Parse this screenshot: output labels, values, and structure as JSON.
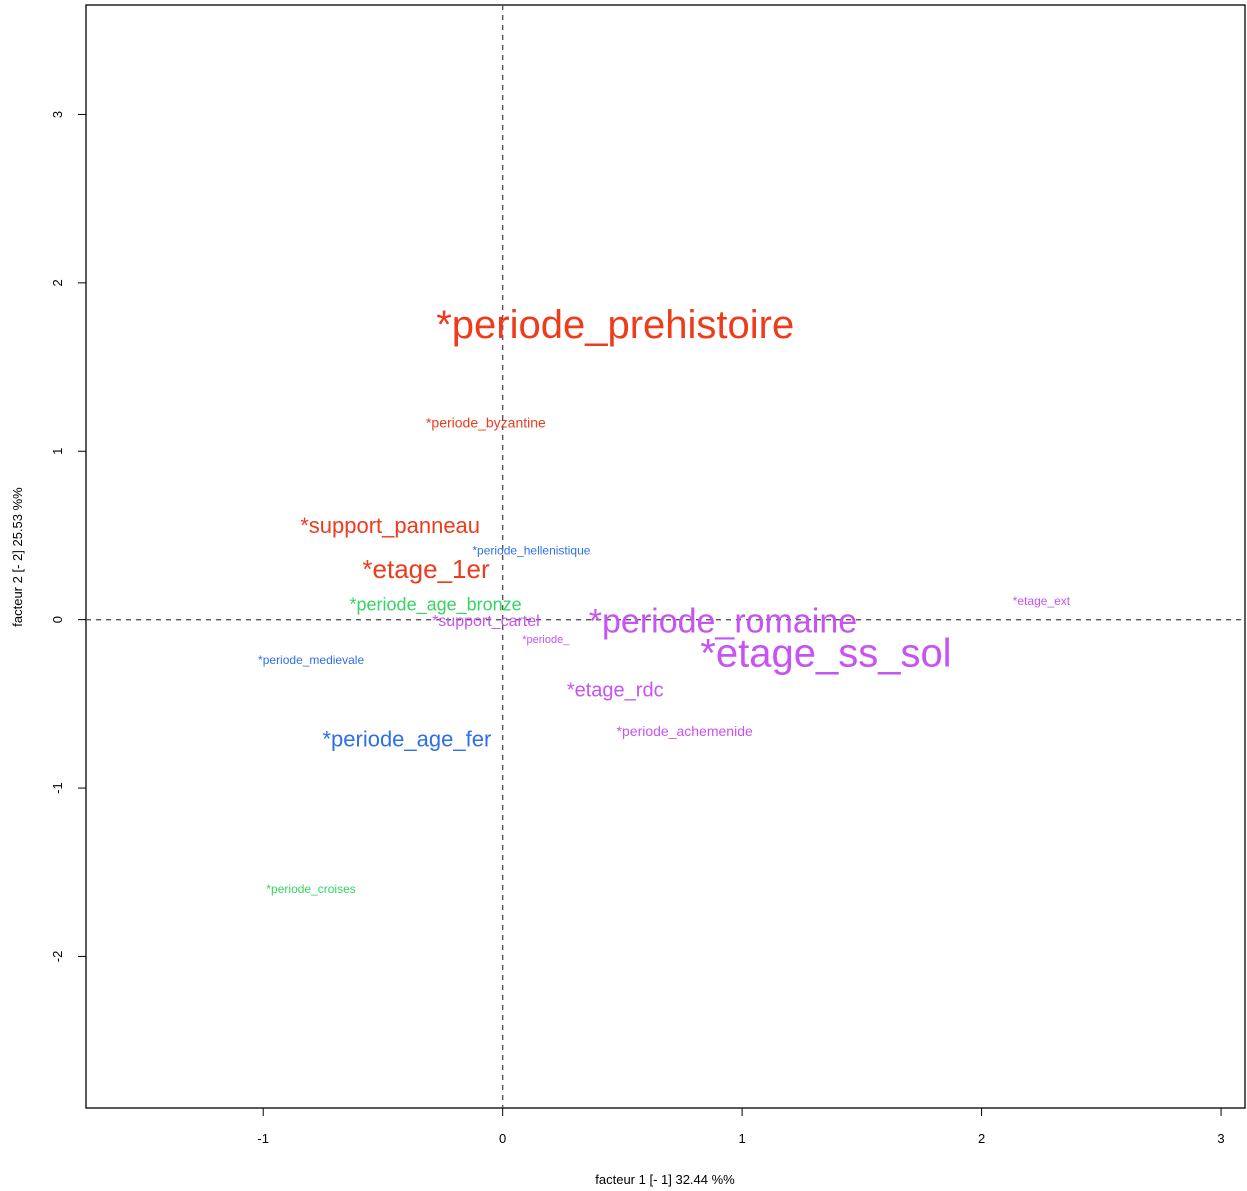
{
  "chart_data": {
    "type": "scatter",
    "title": "",
    "xlabel": "facteur  1 [- 1]  32.44 %%",
    "ylabel": "facteur  2 [- 2]  25.53 %%",
    "xlim": [
      -1.74,
      3.1
    ],
    "ylim": [
      -2.9,
      3.65
    ],
    "x_ticks": [
      -1,
      0,
      1,
      2,
      3
    ],
    "y_ticks": [
      -2,
      -1,
      0,
      1,
      2,
      3
    ],
    "grid": false,
    "reference_lines": {
      "x": 0,
      "y": 0
    },
    "colors": {
      "red": "#ee3b1c",
      "blue": "#2f6fe8",
      "green": "#35d562",
      "magenta": "#c653f2"
    },
    "points": [
      {
        "label": "*periode_prehistoire",
        "x": 0.47,
        "y": 1.75,
        "color": "#ee3b1c",
        "size": 40
      },
      {
        "label": "*periode_byzantine",
        "x": -0.07,
        "y": 1.17,
        "color": "#ee3b1c",
        "size": 14
      },
      {
        "label": "*support_panneau",
        "x": -0.47,
        "y": 0.56,
        "color": "#ee3b1c",
        "size": 22
      },
      {
        "label": "*etage_1er",
        "x": -0.32,
        "y": 0.3,
        "color": "#ee3b1c",
        "size": 26
      },
      {
        "label": "*periode_hellenistique",
        "x": 0.12,
        "y": 0.41,
        "color": "#2f6fe8",
        "size": 12
      },
      {
        "label": "*periode_age_bronze",
        "x": -0.28,
        "y": 0.09,
        "color": "#35d562",
        "size": 18
      },
      {
        "label": "*support_cartel",
        "x": -0.07,
        "y": -0.01,
        "color": "#c653f2",
        "size": 16
      },
      {
        "label": "*periode_",
        "x": 0.18,
        "y": -0.12,
        "color": "#c653f2",
        "size": 11
      },
      {
        "label": "*periode_romaine",
        "x": 0.92,
        "y": -0.01,
        "color": "#c653f2",
        "size": 34
      },
      {
        "label": "*etage_ss_sol",
        "x": 1.35,
        "y": -0.2,
        "color": "#c653f2",
        "size": 40
      },
      {
        "label": "*etage_ext",
        "x": 2.25,
        "y": 0.11,
        "color": "#c653f2",
        "size": 12
      },
      {
        "label": "*periode_medievale",
        "x": -0.8,
        "y": -0.24,
        "color": "#2f6fe8",
        "size": 12
      },
      {
        "label": "*etage_rdc",
        "x": 0.47,
        "y": -0.42,
        "color": "#c653f2",
        "size": 20
      },
      {
        "label": "*periode_achemenide",
        "x": 0.76,
        "y": -0.66,
        "color": "#c653f2",
        "size": 14
      },
      {
        "label": "*periode_age_fer",
        "x": -0.4,
        "y": -0.71,
        "color": "#2f6fe8",
        "size": 22
      },
      {
        "label": "*periode_croises",
        "x": -0.8,
        "y": -1.6,
        "color": "#35d562",
        "size": 12
      }
    ]
  }
}
